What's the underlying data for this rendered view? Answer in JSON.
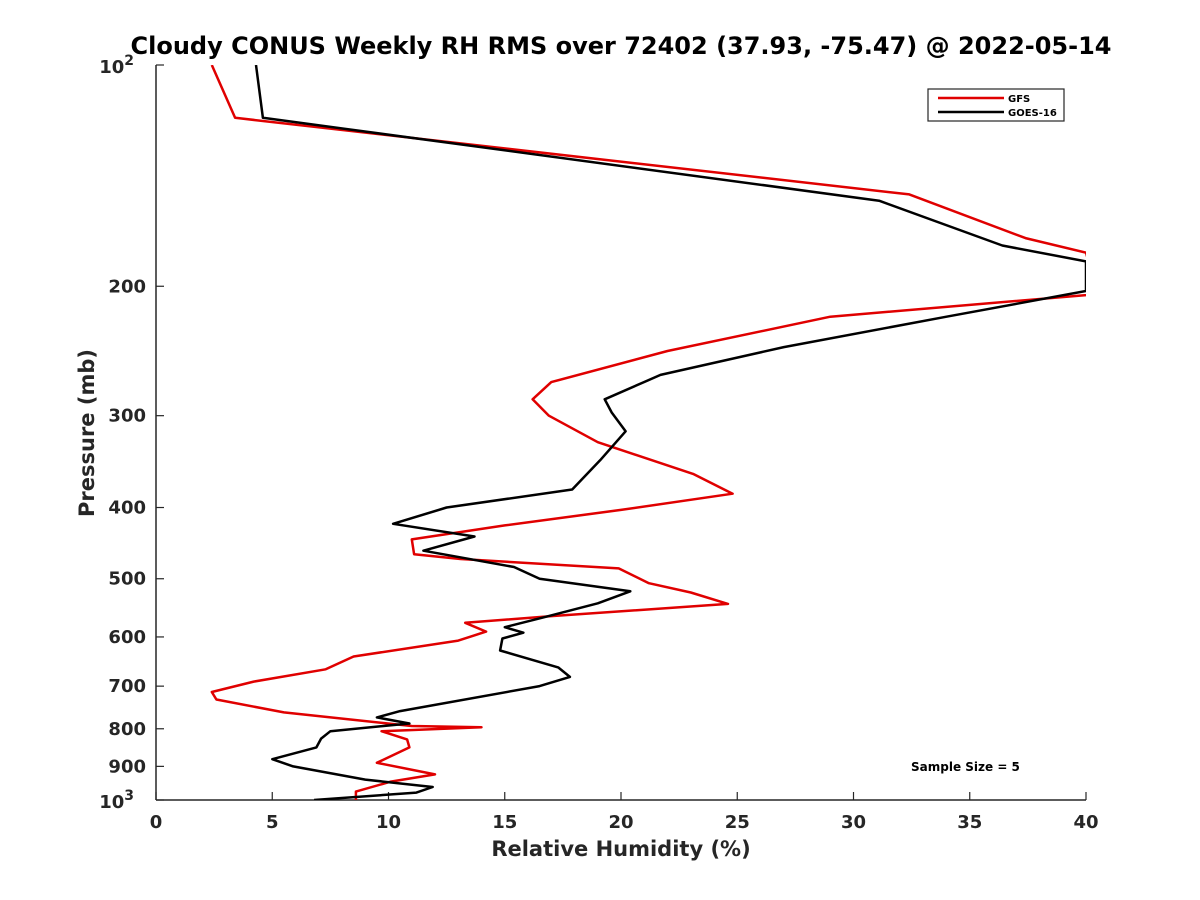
{
  "chart_data": {
    "type": "line",
    "title": "Cloudy CONUS Weekly RH RMS over 72402 (37.93, -75.47) @ 2022-05-14",
    "xlabel": "Relative Humidity (%)",
    "ylabel": "Pressure (mb)",
    "xlim": [
      0,
      40
    ],
    "ylim": [
      100,
      1000
    ],
    "y_scale": "log",
    "y_reversed": true,
    "grid": false,
    "legend_position": "top-right",
    "x_ticks": [
      "0",
      "5",
      "10",
      "15",
      "20",
      "25",
      "30",
      "35",
      "40"
    ],
    "y_ticks": [
      {
        "value": 100,
        "base": "10",
        "exp": "2"
      },
      {
        "value": 200,
        "label": "200"
      },
      {
        "value": 300,
        "label": "300"
      },
      {
        "value": 400,
        "label": "400"
      },
      {
        "value": 500,
        "label": "500"
      },
      {
        "value": 600,
        "label": "600"
      },
      {
        "value": 700,
        "label": "700"
      },
      {
        "value": 800,
        "label": "800"
      },
      {
        "value": 900,
        "label": "900"
      },
      {
        "value": 1000,
        "base": "10",
        "exp": "3"
      }
    ],
    "annotation": "Sample Size = 5",
    "series": [
      {
        "name": "GFS",
        "color": "#e00000",
        "points": [
          [
            2.4,
            100
          ],
          [
            3.4,
            118
          ],
          [
            32.4,
            150
          ],
          [
            37.4,
            172
          ],
          [
            40.0,
            180
          ],
          [
            40.5,
            205
          ],
          [
            29.0,
            220
          ],
          [
            22.0,
            245
          ],
          [
            17.0,
            270
          ],
          [
            16.2,
            285
          ],
          [
            16.9,
            300
          ],
          [
            19.0,
            326
          ],
          [
            23.1,
            360
          ],
          [
            24.8,
            383
          ],
          [
            20.0,
            403
          ],
          [
            15.0,
            423
          ],
          [
            11.0,
            442
          ],
          [
            11.1,
            463
          ],
          [
            13.1,
            470
          ],
          [
            19.9,
            484
          ],
          [
            21.2,
            507
          ],
          [
            23.0,
            522
          ],
          [
            24.6,
            541
          ],
          [
            17.0,
            562
          ],
          [
            13.3,
            574
          ],
          [
            14.2,
            590
          ],
          [
            13.0,
            607
          ],
          [
            8.5,
            638
          ],
          [
            7.3,
            664
          ],
          [
            4.2,
            690
          ],
          [
            2.4,
            713
          ],
          [
            2.6,
            730
          ],
          [
            5.5,
            760
          ],
          [
            11.0,
            793
          ],
          [
            14.0,
            796
          ],
          [
            9.7,
            806
          ],
          [
            10.8,
            827
          ],
          [
            10.9,
            848
          ],
          [
            9.5,
            890
          ],
          [
            12.0,
            923
          ],
          [
            10.1,
            944
          ],
          [
            8.6,
            974
          ],
          [
            8.6,
            1000
          ]
        ]
      },
      {
        "name": "GOES-16",
        "color": "#000000",
        "points": [
          [
            4.3,
            100
          ],
          [
            4.6,
            118
          ],
          [
            31.1,
            153
          ],
          [
            36.4,
            176
          ],
          [
            40.0,
            185
          ],
          [
            40.0,
            203
          ],
          [
            34.0,
            220
          ],
          [
            27.0,
            242
          ],
          [
            21.7,
            264
          ],
          [
            19.3,
            285
          ],
          [
            19.6,
            297
          ],
          [
            20.2,
            315
          ],
          [
            19.1,
            345
          ],
          [
            17.9,
            378
          ],
          [
            12.5,
            400
          ],
          [
            10.2,
            421
          ],
          [
            13.7,
            438
          ],
          [
            11.5,
            458
          ],
          [
            15.4,
            482
          ],
          [
            16.5,
            500
          ],
          [
            20.4,
            520
          ],
          [
            19.0,
            540
          ],
          [
            16.7,
            564
          ],
          [
            15.0,
            582
          ],
          [
            15.8,
            592
          ],
          [
            14.9,
            603
          ],
          [
            14.8,
            626
          ],
          [
            17.3,
            660
          ],
          [
            17.8,
            680
          ],
          [
            16.5,
            700
          ],
          [
            10.5,
            757
          ],
          [
            9.5,
            772
          ],
          [
            10.9,
            787
          ],
          [
            7.5,
            806
          ],
          [
            7.1,
            825
          ],
          [
            6.9,
            848
          ],
          [
            5.0,
            880
          ],
          [
            5.9,
            900
          ],
          [
            9.0,
            938
          ],
          [
            11.9,
            960
          ],
          [
            11.2,
            977
          ],
          [
            6.8,
            1000
          ]
        ]
      }
    ]
  }
}
